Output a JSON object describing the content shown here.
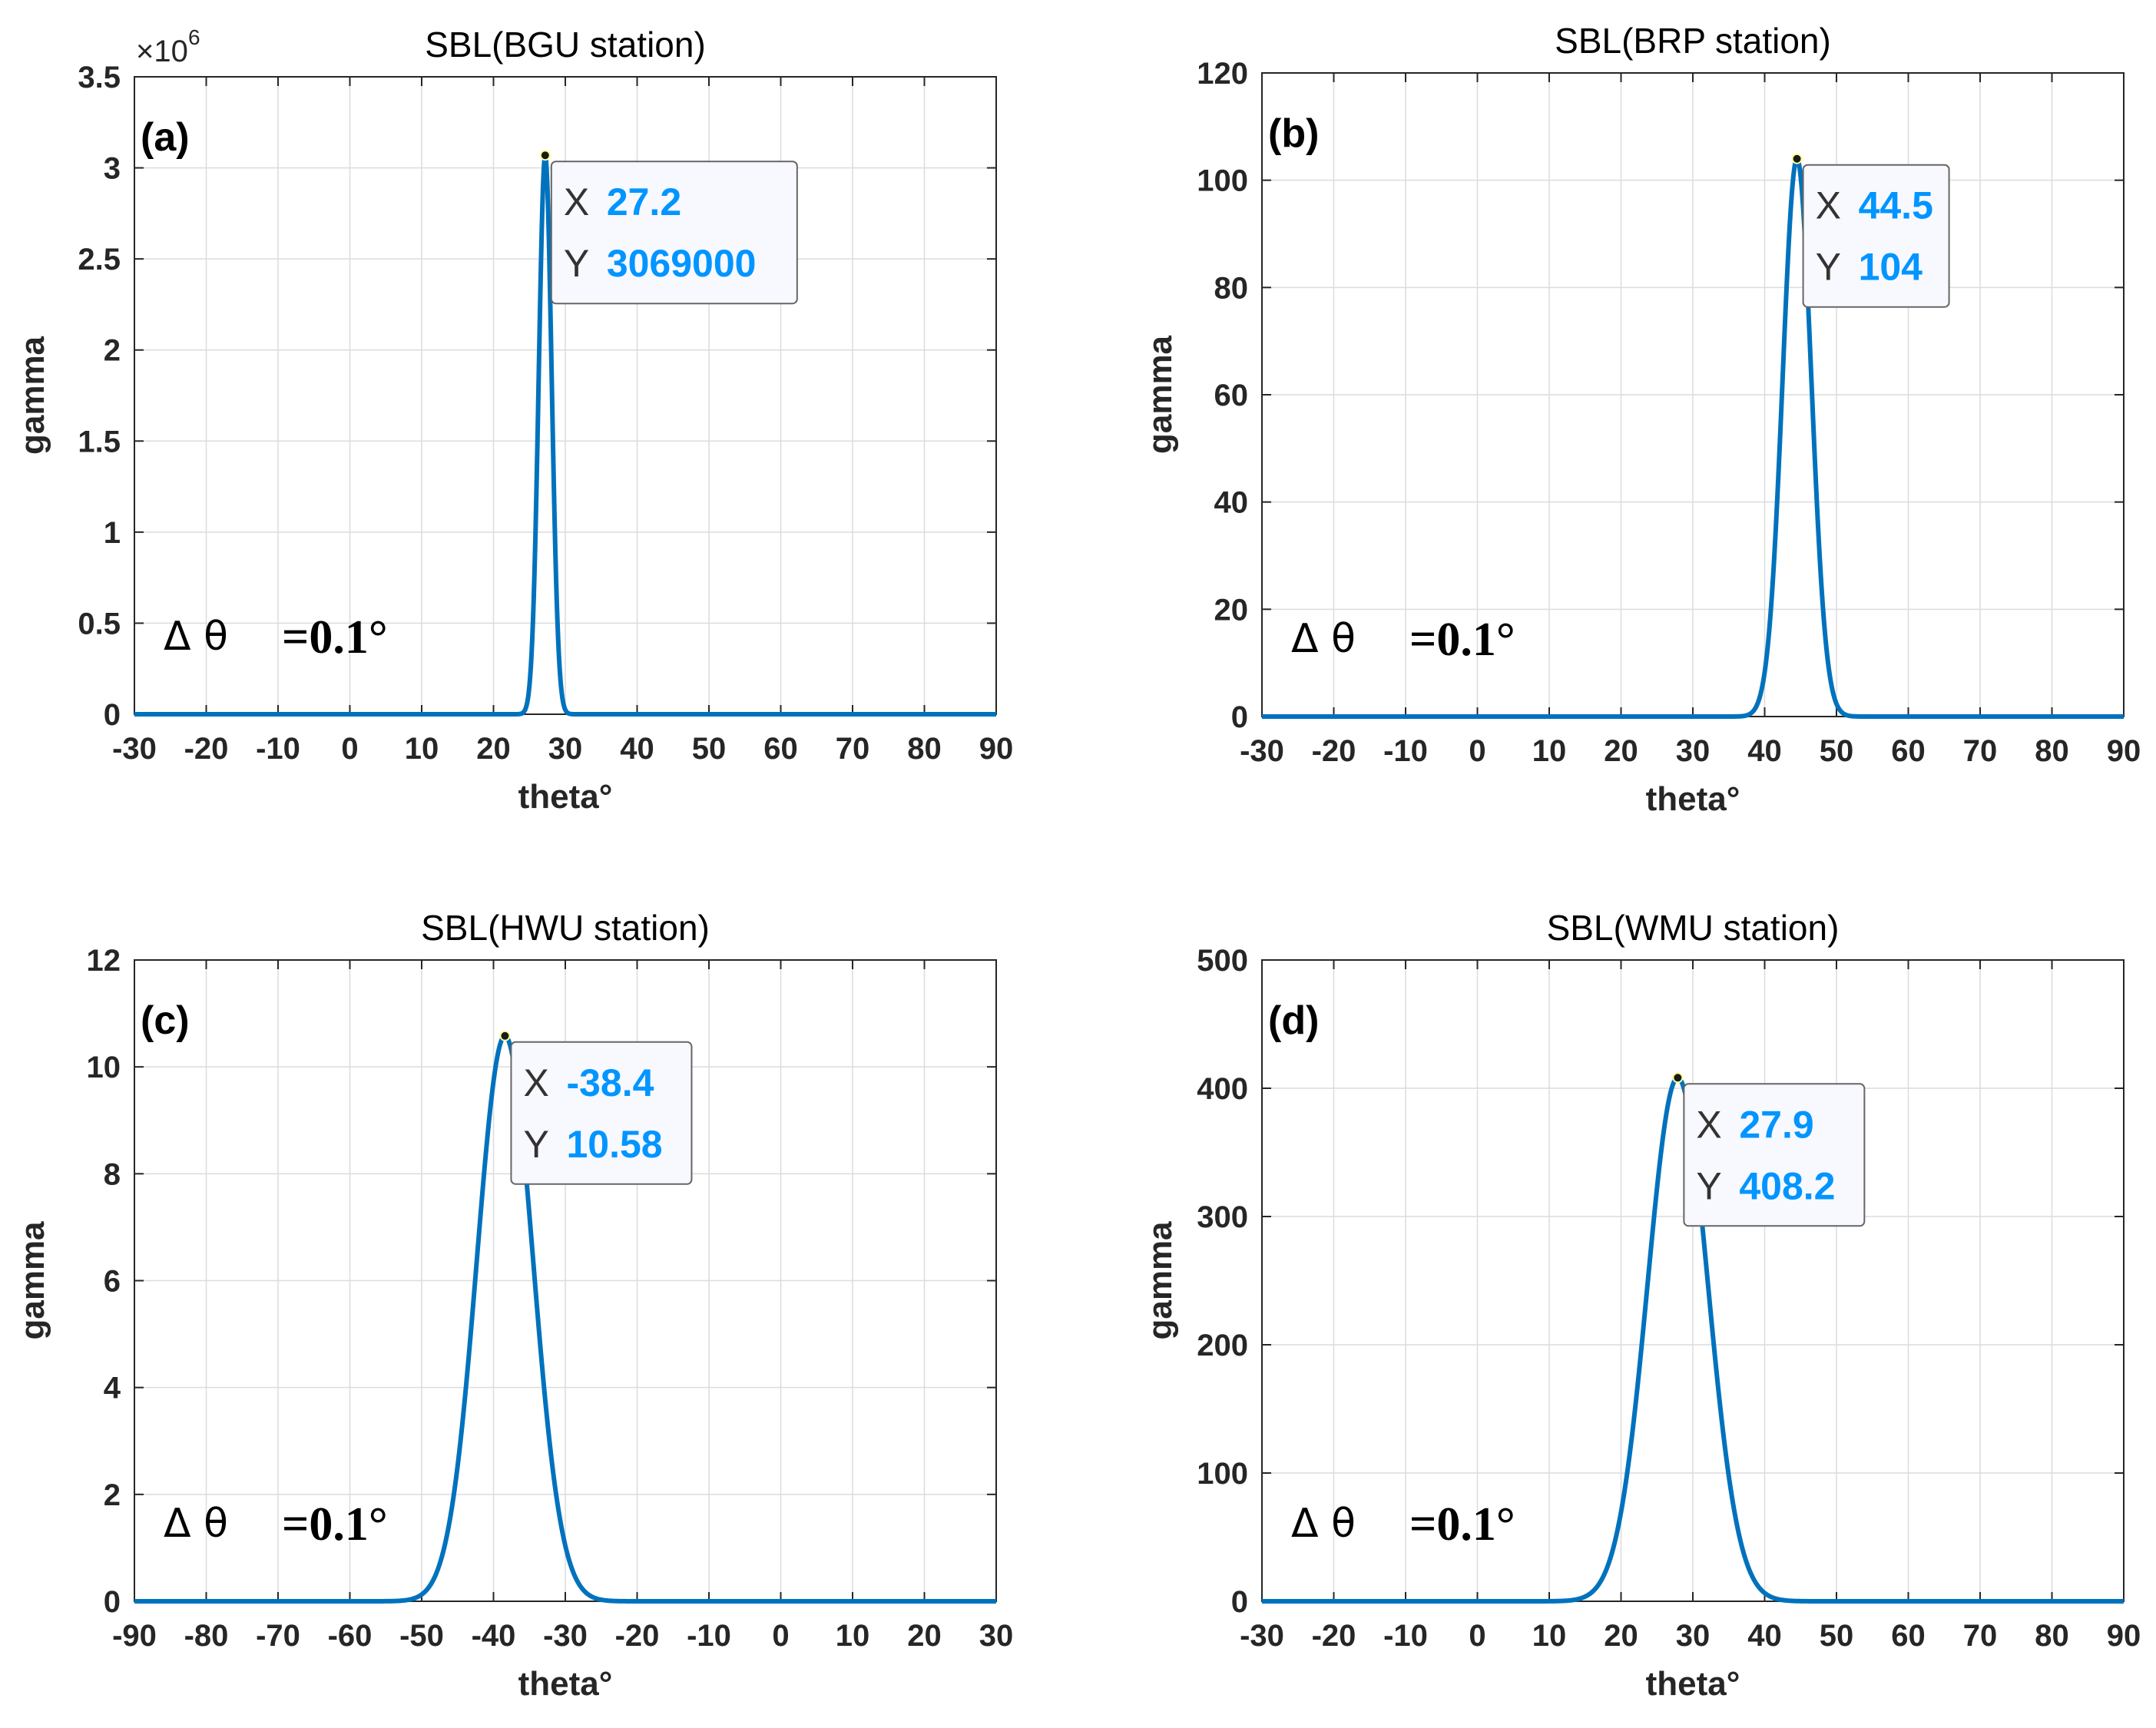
{
  "colors": {
    "line": "#0072BD",
    "grid": "#dcdcdc",
    "axis": "#262626",
    "tip_value": "#0095FF",
    "tip_bg": "#F8F8FF",
    "tip_border": "#666666"
  },
  "chart_data": [
    {
      "type": "line",
      "title": "SBL(BGU station)",
      "panel_label": "(a)",
      "xlabel": "theta°",
      "ylabel": "gamma",
      "xlim": [
        -30,
        90
      ],
      "ylim": [
        0,
        3500000
      ],
      "xticks": [
        -30,
        -20,
        -10,
        0,
        10,
        20,
        30,
        40,
        50,
        60,
        70,
        80,
        90
      ],
      "yticks": [
        0,
        500000,
        1000000,
        1500000,
        2000000,
        2500000,
        3000000,
        3500000
      ],
      "ytick_labels": [
        "0",
        "0.5",
        "1",
        "1.5",
        "2",
        "2.5",
        "3",
        "3.5"
      ],
      "exponent_base": "×10",
      "exponent_power": "6",
      "peak": {
        "x": 27.2,
        "y": 3069000
      },
      "peak_halfwidth": 0.9,
      "delta_symbol": "Δ θ",
      "delta_value": "=0.1°",
      "datatip": {
        "x_key": "X",
        "x_value": "27.2",
        "y_key": "Y",
        "y_value": "3069000"
      }
    },
    {
      "type": "line",
      "title": "SBL(BRP station)",
      "panel_label": "(b)",
      "xlabel": "theta°",
      "ylabel": "gamma",
      "xlim": [
        -30,
        90
      ],
      "ylim": [
        0,
        120
      ],
      "xticks": [
        -30,
        -20,
        -10,
        0,
        10,
        20,
        30,
        40,
        50,
        60,
        70,
        80,
        90
      ],
      "yticks": [
        0,
        20,
        40,
        60,
        80,
        100,
        120
      ],
      "ytick_labels": [
        "0",
        "20",
        "40",
        "60",
        "80",
        "100",
        "120"
      ],
      "peak": {
        "x": 44.5,
        "y": 104
      },
      "peak_halfwidth": 2.0,
      "delta_symbol": "Δ θ",
      "delta_value": "=0.1°",
      "datatip": {
        "x_key": "X",
        "x_value": "44.5",
        "y_key": "Y",
        "y_value": "104"
      }
    },
    {
      "type": "line",
      "title": "SBL(HWU station)",
      "panel_label": "(c)",
      "xlabel": "theta°",
      "ylabel": "gamma",
      "xlim": [
        -90,
        30
      ],
      "ylim": [
        0,
        12
      ],
      "xticks": [
        -90,
        -80,
        -70,
        -60,
        -50,
        -40,
        -30,
        -20,
        -10,
        0,
        10,
        20,
        30
      ],
      "yticks": [
        0,
        2,
        4,
        6,
        8,
        10,
        12
      ],
      "ytick_labels": [
        "0",
        "2",
        "4",
        "6",
        "8",
        "10",
        "12"
      ],
      "peak": {
        "x": -38.4,
        "y": 10.58
      },
      "peak_halfwidth": 3.9,
      "delta_symbol": "Δ θ",
      "delta_value": "=0.1°",
      "datatip": {
        "x_key": "X",
        "x_value": "-38.4",
        "y_key": "Y",
        "y_value": "10.58"
      }
    },
    {
      "type": "line",
      "title": "SBL(WMU station)",
      "panel_label": "(d)",
      "xlabel": "theta°",
      "ylabel": "gamma",
      "xlim": [
        -30,
        90
      ],
      "ylim": [
        0,
        500
      ],
      "xticks": [
        -30,
        -20,
        -10,
        0,
        10,
        20,
        30,
        40,
        50,
        60,
        70,
        80,
        90
      ],
      "yticks": [
        0,
        100,
        200,
        300,
        400,
        500
      ],
      "ytick_labels": [
        "0",
        "100",
        "200",
        "300",
        "400",
        "500"
      ],
      "peak": {
        "x": 27.9,
        "y": 408.2
      },
      "peak_halfwidth": 4.2,
      "delta_symbol": "Δ θ",
      "delta_value": "=0.1°",
      "datatip": {
        "x_key": "X",
        "x_value": "27.9",
        "y_key": "Y",
        "y_value": "408.2"
      }
    }
  ]
}
